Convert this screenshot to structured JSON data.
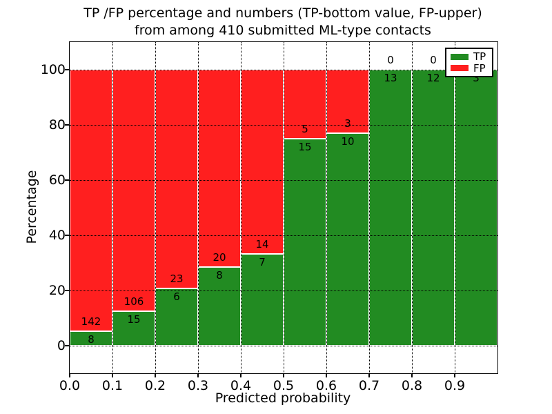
{
  "figure": {
    "title_line1": "TP /FP percentage and numbers (TP-bottom value, FP-upper)",
    "title_line2": "from among 410 submitted ML-type contacts",
    "xlabel": "Predicted probability",
    "ylabel": "Percentage"
  },
  "legend": {
    "position": "upper-right",
    "items": [
      {
        "label": "TP",
        "color": "#228b22"
      },
      {
        "label": "FP",
        "color": "#ff1f1f"
      }
    ]
  },
  "chart_data": {
    "type": "bar",
    "stacked": true,
    "normalized_to_percent": true,
    "title": "TP /FP percentage and numbers (TP-bottom value, FP-upper) from among 410 submitted ML-type contacts",
    "xlabel": "Predicted probability",
    "ylabel": "Percentage",
    "total_contacts": 410,
    "bins_start": [
      0.0,
      0.1,
      0.2,
      0.3,
      0.4,
      0.5,
      0.6,
      0.7,
      0.8,
      0.9
    ],
    "bin_width": 0.1,
    "x_tick_labels": [
      "0.0",
      "0.1",
      "0.2",
      "0.3",
      "0.4",
      "0.5",
      "0.6",
      "0.7",
      "0.8",
      "0.9"
    ],
    "y_tick_values": [
      0,
      20,
      40,
      60,
      80,
      100
    ],
    "xlim": [
      0.0,
      1.0
    ],
    "ylim": [
      -10,
      110
    ],
    "grid": {
      "style": "dotted",
      "color": "#000000",
      "above_bars": true
    },
    "bar_edge_color": "#ffffff",
    "series": [
      {
        "name": "TP",
        "color": "#228b22",
        "counts": [
          8,
          15,
          6,
          8,
          7,
          15,
          10,
          13,
          12,
          3
        ],
        "percent": [
          5.33,
          12.4,
          20.69,
          28.57,
          33.33,
          75.0,
          76.92,
          100.0,
          100.0,
          100.0
        ]
      },
      {
        "name": "FP",
        "color": "#ff1f1f",
        "counts": [
          142,
          106,
          23,
          20,
          14,
          5,
          3,
          0,
          0,
          0
        ],
        "percent": [
          94.67,
          87.6,
          79.31,
          71.43,
          66.67,
          25.0,
          23.08,
          0.0,
          0.0,
          0.0
        ]
      }
    ]
  }
}
